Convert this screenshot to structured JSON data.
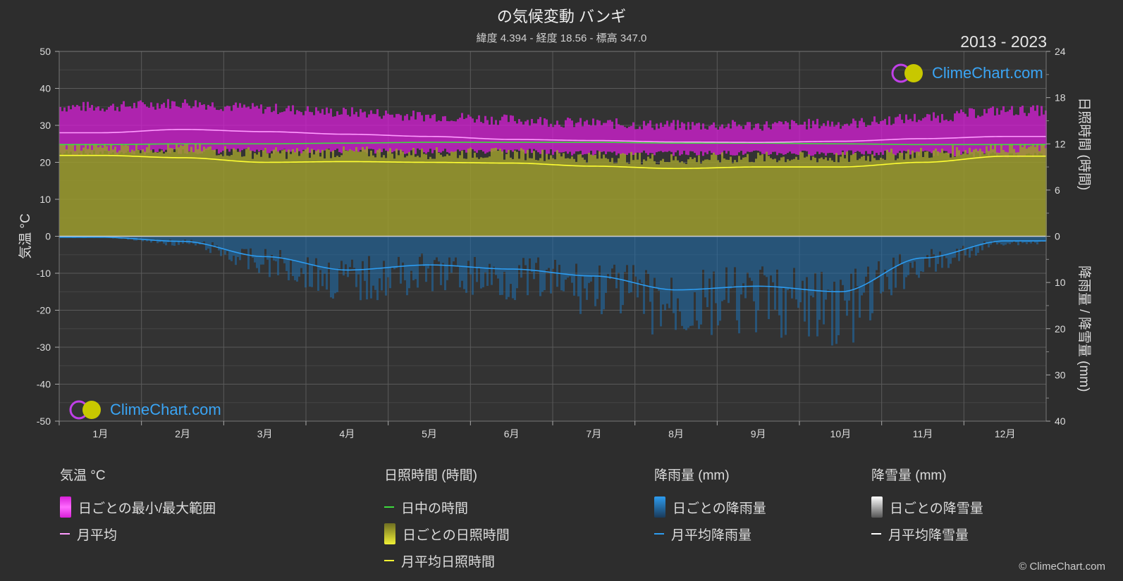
{
  "header": {
    "title": "の気候変動 バンギ",
    "subtitle": "緯度 4.394 - 経度 18.56 - 標高 347.0",
    "years": "2013 - 2023"
  },
  "logo": {
    "text": "ClimeChart.com"
  },
  "copyright": "© ClimeChart.com",
  "colors": {
    "background": "#2d2d2d",
    "temp_range": "#d81fd8",
    "temp_mean": "#ff9bff",
    "daylight": "#3ddc3d",
    "sunshine_fill": "#9c9c2e",
    "sunshine_mean": "#ffff33",
    "rain": "#1e6fb0",
    "rain_mean": "#2d9cf0",
    "snow_mean": "#ffffff",
    "accent": "#3aa5f5"
  },
  "legend": {
    "temperature": {
      "title": "気温 °C",
      "range_label": "日ごとの最小/最大範囲",
      "mean_label": "月平均"
    },
    "sunshine": {
      "title": "日照時間 (時間)",
      "daylight_label": "日中の時間",
      "daily_label": "日ごとの日照時間",
      "mean_label": "月平均日照時間"
    },
    "rain": {
      "title": "降雨量 (mm)",
      "daily_label": "日ごとの降雨量",
      "mean_label": "月平均降雨量"
    },
    "snow": {
      "title": "降雪量 (mm)",
      "daily_label": "日ごとの降雪量",
      "mean_label": "月平均降雪量"
    }
  },
  "chart_data": {
    "type": "line",
    "categories": [
      "1月",
      "2月",
      "3月",
      "4月",
      "5月",
      "6月",
      "7月",
      "8月",
      "9月",
      "10月",
      "11月",
      "12月"
    ],
    "left_axis": {
      "label": "気温 °C",
      "ylim": [
        -50,
        50
      ],
      "ticks": [
        50,
        40,
        30,
        20,
        10,
        0,
        -10,
        -20,
        -30,
        -40,
        -50
      ]
    },
    "right_axis_top": {
      "label": "日照時間 (時間)",
      "ylim": [
        0,
        24
      ],
      "ticks": [
        24,
        18,
        12,
        6,
        0
      ]
    },
    "right_axis_bottom": {
      "label": "降雨量 / 降雪量 (mm)",
      "ylim": [
        0,
        40
      ],
      "ticks": [
        0,
        10,
        20,
        30,
        40
      ]
    },
    "grid": true,
    "series": [
      {
        "name": "月平均",
        "axis": "temperature",
        "values": [
          28.0,
          28.9,
          28.3,
          27.6,
          27.0,
          26.2,
          25.9,
          25.5,
          25.4,
          25.7,
          26.4,
          27.0
        ]
      },
      {
        "name": "日中の時間",
        "axis": "sunshine",
        "values": [
          11.9,
          12.0,
          12.0,
          12.1,
          12.2,
          12.2,
          12.2,
          12.1,
          12.1,
          12.0,
          11.9,
          11.9
        ]
      },
      {
        "name": "月平均日照時間",
        "axis": "sunshine",
        "values": [
          10.5,
          10.2,
          9.6,
          9.7,
          9.6,
          9.5,
          9.1,
          8.8,
          9.0,
          9.0,
          9.6,
          10.4
        ]
      },
      {
        "name": "月平均降雨量",
        "axis": "rain",
        "values": [
          0.2,
          1.1,
          4.4,
          7.3,
          6.2,
          7.1,
          8.6,
          11.6,
          10.8,
          12.0,
          4.7,
          1.0
        ]
      },
      {
        "name": "日ごとの最小/最大範囲",
        "axis": "temperature",
        "min": [
          22.5,
          23.0,
          23.0,
          23.0,
          23.0,
          23.0,
          22.5,
          22.5,
          22.5,
          22.5,
          22.5,
          22.0
        ],
        "max": [
          35.0,
          36.0,
          34.5,
          33.5,
          32.5,
          31.5,
          30.5,
          30.0,
          30.0,
          30.5,
          32.0,
          34.0
        ]
      }
    ]
  }
}
